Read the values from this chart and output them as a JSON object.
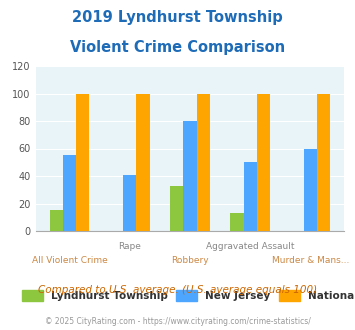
{
  "title_line1": "2019 Lyndhurst Township",
  "title_line2": "Violent Crime Comparison",
  "top_labels": [
    "",
    "Rape",
    "",
    "Aggravated Assault",
    ""
  ],
  "bottom_labels": [
    "All Violent Crime",
    "",
    "Robbery",
    "",
    "Murder & Mans..."
  ],
  "lyndhurst": [
    15,
    0,
    33,
    13,
    0
  ],
  "new_jersey": [
    55,
    41,
    80,
    50,
    60
  ],
  "national": [
    100,
    100,
    100,
    100,
    100
  ],
  "colors": {
    "lyndhurst": "#8DC63F",
    "new_jersey": "#4DA6FF",
    "national": "#FFA500",
    "background": "#E8F4F8",
    "title": "#1E6BB8",
    "axis_label_top": "#888888",
    "axis_label_bot": "#CC8844",
    "legend_text": "#333333",
    "footnote": "#CC6600",
    "copyright": "#999999"
  },
  "ylim": [
    0,
    120
  ],
  "yticks": [
    0,
    20,
    40,
    60,
    80,
    100,
    120
  ],
  "footnote": "Compared to U.S. average. (U.S. average equals 100)",
  "copyright": "© 2025 CityRating.com - https://www.cityrating.com/crime-statistics/"
}
